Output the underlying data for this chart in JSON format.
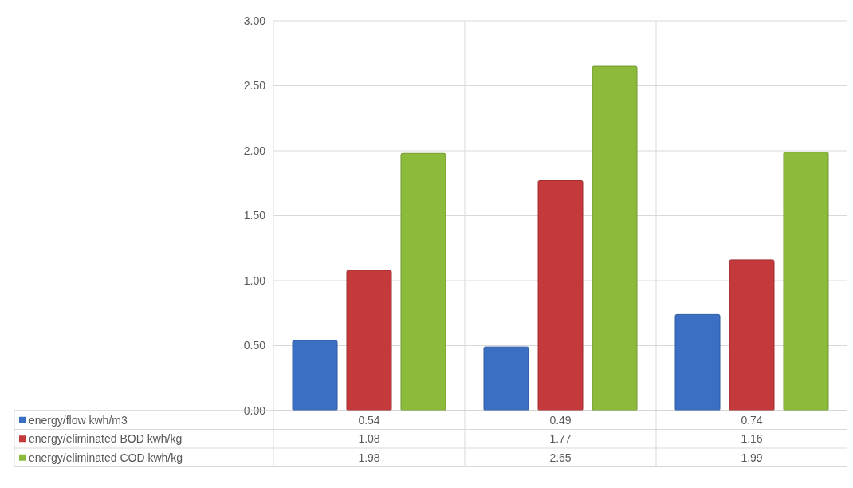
{
  "chart_data": {
    "type": "bar",
    "categories": [
      null,
      null,
      null
    ],
    "series": [
      {
        "name": "energy/flow kwh/m3",
        "color": "#3a6fc4",
        "values": [
          0.54,
          0.49,
          0.74
        ]
      },
      {
        "name": "energy/eliminated BOD kwh/kg",
        "color": "#c4393b",
        "values": [
          1.08,
          1.77,
          1.16
        ]
      },
      {
        "name": "energy/eliminated COD kwh/kg",
        "color": "#8cbb3c",
        "values": [
          1.98,
          2.65,
          1.99
        ]
      }
    ],
    "ylim": [
      0,
      3
    ],
    "yticks": [
      {
        "value": 0,
        "label": "0.00"
      },
      {
        "value": 0.5,
        "label": "0.50"
      },
      {
        "value": 1,
        "label": "1.00"
      },
      {
        "value": 1.5,
        "label": "1.50"
      },
      {
        "value": 2,
        "label": "2.00"
      },
      {
        "value": 2.5,
        "label": "2.50"
      },
      {
        "value": 3,
        "label": "3.00"
      }
    ],
    "grid": true,
    "legend": "bottom",
    "data_labels": true
  }
}
